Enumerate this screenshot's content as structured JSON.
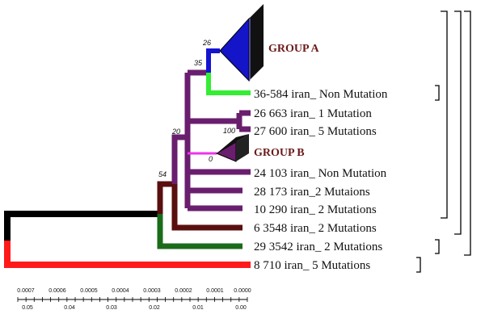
{
  "leaves": [
    {
      "label": "36-584 iran_ Non Mutation"
    },
    {
      "label": "26 663 iran_ 1 Mutation"
    },
    {
      "label": "27 600 iran_ 5 Mutations"
    },
    {
      "label": "24 103 iran_ Non Mutation"
    },
    {
      "label": "28 173 iran_2 Mutaions"
    },
    {
      "label": "10 290 iran_ 2 Mutations"
    },
    {
      "label": "6 3548 iran_ 2 Mutations"
    },
    {
      "label": "29 3542 iran_ 2 Mutations"
    },
    {
      "label": "8 710 iran_ 5 Mutations"
    }
  ],
  "groups": {
    "a": {
      "label": "GROUP A"
    },
    "b": {
      "label": "GROUP B"
    }
  },
  "bootstrap": {
    "b26": "26",
    "b35": "35",
    "b100": "100",
    "b0": "0",
    "b20": "20",
    "b54": "54"
  },
  "scale": {
    "top_ticks": [
      "0.0007",
      "0.0006",
      "0.0005",
      "0.0004",
      "0.0003",
      "0.0002",
      "0.0001",
      "0.0000"
    ],
    "bottom_ticks": [
      "0.05",
      "0.04",
      "0.03",
      "0.02",
      "0.01",
      "0.00"
    ]
  },
  "colors": {
    "black": "#000000",
    "red": "#ff1a1a",
    "green": "#1a6b1a",
    "maroon": "#5a0f0f",
    "purple": "#6a1e6e",
    "blue": "#1414d0",
    "lime": "#33ee33",
    "magenta": "#ee33ee"
  }
}
